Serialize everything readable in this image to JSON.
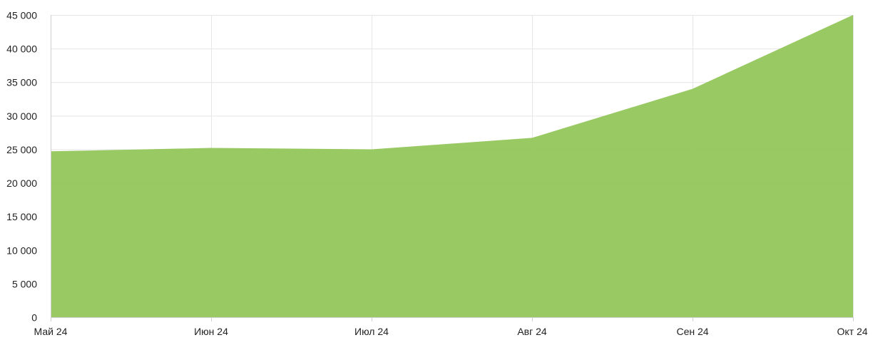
{
  "chart_data": {
    "type": "area",
    "title": "",
    "xlabel": "",
    "ylabel": "",
    "categories": [
      "Май 24",
      "Июн 24",
      "Июл 24",
      "Авг 24",
      "Сен 24",
      "Окт 24"
    ],
    "series": [
      {
        "values": [
          24700,
          25200,
          25000,
          26700,
          34000,
          45000
        ],
        "color": "#92c65b"
      }
    ],
    "ylim": [
      0,
      45000
    ],
    "y_ticks": [
      0,
      5000,
      10000,
      15000,
      20000,
      25000,
      30000,
      35000,
      40000,
      45000
    ],
    "y_tick_labels": [
      "0",
      "5 000",
      "10 000",
      "15 000",
      "20 000",
      "25 000",
      "30 000",
      "35 000",
      "40 000",
      "45 000"
    ],
    "grid": true,
    "legend": "none"
  }
}
